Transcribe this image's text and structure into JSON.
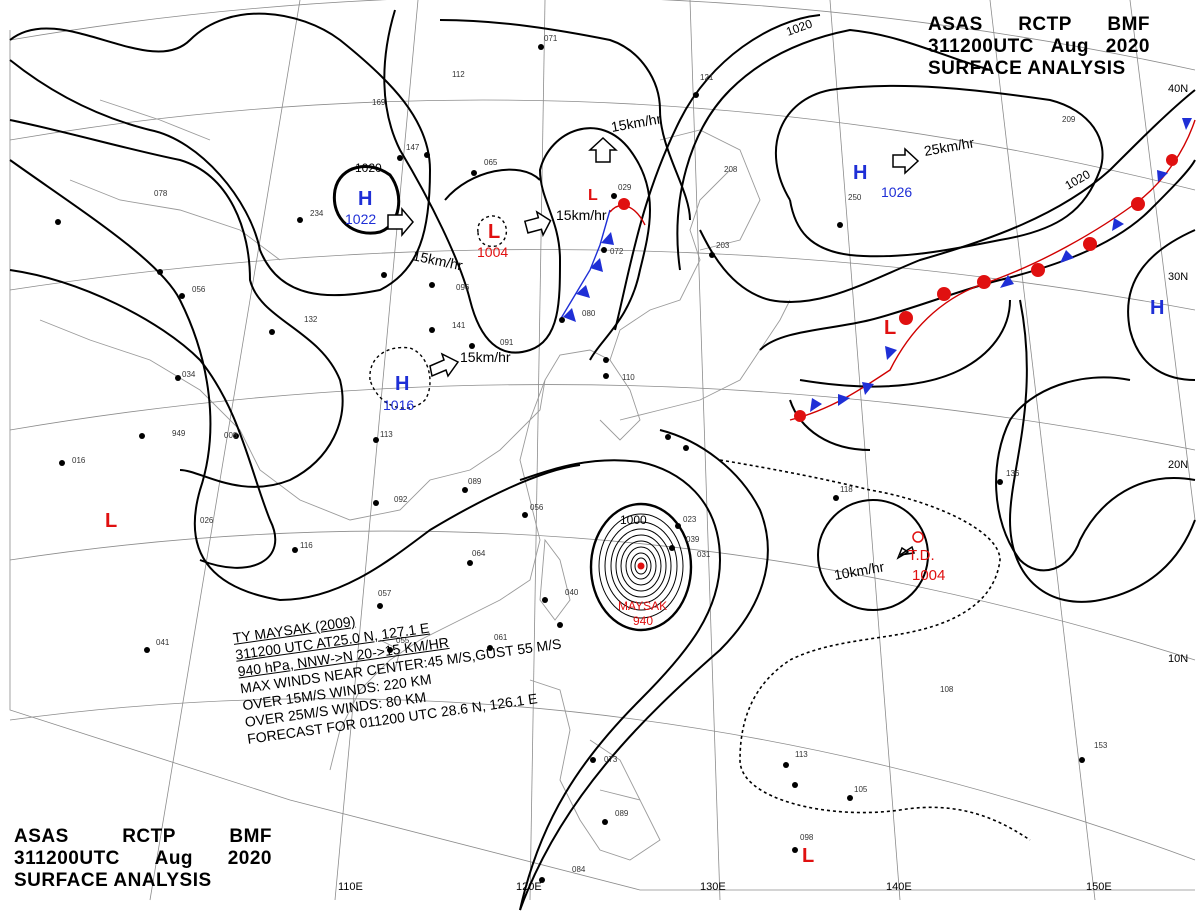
{
  "header": {
    "line1": [
      "ASAS",
      "RCTP",
      "BMF"
    ],
    "line2": [
      "311200UTC",
      "Aug",
      "2020"
    ],
    "line3": "SURFACE ANALYSIS"
  },
  "colors": {
    "high": "#1f2fd6",
    "low": "#e01010",
    "isobar": "#000000",
    "graticule": "#888888",
    "coast": "#9a9a9a"
  },
  "lat_labels": [
    "40N",
    "30N",
    "20N",
    "10N"
  ],
  "lon_labels": [
    "110E",
    "120E",
    "130E",
    "140E",
    "150E"
  ],
  "isobar_labels": [
    "1020",
    "1020",
    "1020",
    "1000"
  ],
  "pressure_centers": [
    {
      "type": "H",
      "value": "1022"
    },
    {
      "type": "L",
      "value": "1004"
    },
    {
      "type": "H",
      "value": "1016"
    },
    {
      "type": "H",
      "value": "1026"
    },
    {
      "type": "H",
      "value": ""
    },
    {
      "type": "L",
      "value": ""
    },
    {
      "type": "L",
      "value": ""
    },
    {
      "type": "L",
      "value": ""
    },
    {
      "type": "L",
      "value": ""
    }
  ],
  "motions": [
    "15km/hr",
    "15km/hr",
    "15km/hr",
    "15km/hr",
    "25km/hr",
    "10km/hr"
  ],
  "typhoon": {
    "name": "MAYSAK",
    "pressure": "940"
  },
  "tropical_depression": {
    "label": "T.D.",
    "pressure": "1004"
  },
  "storm_info": {
    "line1": "TY  MAYSAK  (2009)",
    "line2": "311200 UTC  AT25.0 N, 127.1 E",
    "line3": "940 hPa, NNW->N  20->15 KM/HR",
    "line4": "MAX WINDS NEAR CENTER:45 M/S,GUST 55 M/S",
    "line5": "OVER 15M/S WINDS: 220 KM",
    "line6": "OVER 25M/S WINDS: 80 KM",
    "line7": "FORECAST FOR 011200 UTC 28.6 N, 126.1 E"
  },
  "station_values": [
    "112",
    "065",
    "234",
    "078",
    "056",
    "132",
    "141",
    "096",
    "034",
    "949",
    "008",
    "016",
    "113",
    "091",
    "089",
    "092",
    "056",
    "064",
    "116",
    "057",
    "055",
    "041",
    "061",
    "040",
    "023",
    "039",
    "031",
    "071",
    "121",
    "147",
    "029",
    "072",
    "080",
    "110",
    "118",
    "095",
    "136",
    "209",
    "108",
    "153",
    "113",
    "105",
    "098",
    "084",
    "073",
    "089",
    "203",
    "208",
    "250",
    "169",
    "026"
  ]
}
